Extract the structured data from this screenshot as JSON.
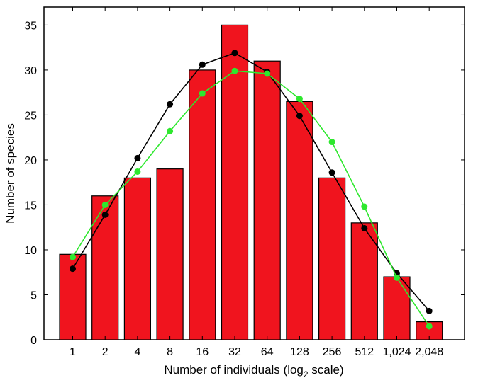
{
  "chart_data": {
    "type": "bar",
    "categories": [
      "1",
      "2",
      "4",
      "8",
      "16",
      "32",
      "64",
      "128",
      "256",
      "512",
      "1,024",
      "2,048"
    ],
    "xlabel": "Number of individuals (log",
    "xlabel_subscript": "2",
    "xlabel_suffix": " scale)",
    "ylabel": "Number of species",
    "ylim": [
      0,
      37
    ],
    "yticks": [
      "0",
      "5",
      "10",
      "15",
      "20",
      "25",
      "30",
      "35"
    ],
    "grid": false,
    "series": [
      {
        "type": "bar",
        "values": [
          9.5,
          16,
          18,
          19,
          30,
          35,
          31,
          26.5,
          18,
          13,
          7,
          2
        ],
        "color": "#f0141e"
      },
      {
        "type": "line",
        "values": [
          7.9,
          13.9,
          20.2,
          26.2,
          30.6,
          31.9,
          29.8,
          24.9,
          18.6,
          12.4,
          7.4,
          3.2
        ],
        "color": "#000000"
      },
      {
        "type": "line",
        "values": [
          9.2,
          15.0,
          18.7,
          23.2,
          27.4,
          29.9,
          29.6,
          26.8,
          22.0,
          14.8,
          6.9,
          1.5
        ],
        "color": "#2ee82e"
      }
    ]
  }
}
